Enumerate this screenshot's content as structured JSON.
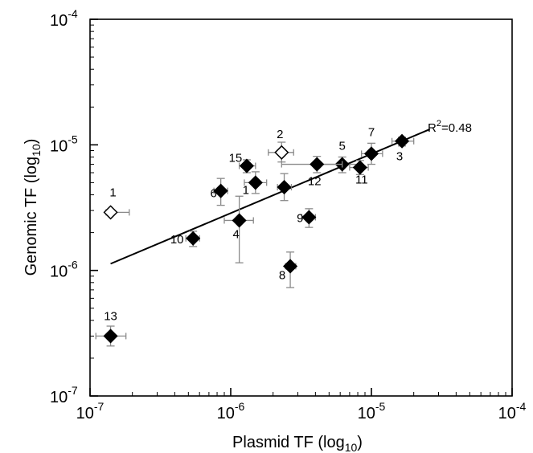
{
  "chart_data": {
    "type": "scatter",
    "xscale": "log",
    "yscale": "log",
    "xlim": [
      1e-07,
      0.0001
    ],
    "ylim": [
      1e-07,
      0.0001
    ],
    "xlabel": "Plasmid TF (log",
    "xlabel_sub": "10",
    "xlabel_end": ")",
    "ylabel": "Genomic TF (log",
    "ylabel_sub": "10",
    "ylabel_end": ")",
    "x_ticks": [
      {
        "value": 1e-07,
        "base": "10",
        "exp": "-7"
      },
      {
        "value": 1e-06,
        "base": "10",
        "exp": "-6"
      },
      {
        "value": 1e-05,
        "base": "10",
        "exp": "-5"
      },
      {
        "value": 0.0001,
        "base": "10",
        "exp": "-4"
      }
    ],
    "y_ticks": [
      {
        "value": 1e-07,
        "base": "10",
        "exp": "-7"
      },
      {
        "value": 1e-06,
        "base": "10",
        "exp": "-6"
      },
      {
        "value": 1e-05,
        "base": "10",
        "exp": "-5"
      },
      {
        "value": 0.0001,
        "base": "10",
        "exp": "-4"
      }
    ],
    "grid": false,
    "points": [
      {
        "label": "1",
        "x": 1.4e-07,
        "y": 2.9e-06,
        "xerr": [
          1.3e-07,
          1.9e-07
        ],
        "yerr": [
          2.8e-06,
          3e-06
        ],
        "filled": false
      },
      {
        "label": "2",
        "x": 2.3e-06,
        "y": 8.7e-06,
        "xerr": [
          1.85e-06,
          2.8e-06
        ],
        "yerr": [
          7.3e-06,
          1.05e-05
        ],
        "filled": false
      },
      {
        "label": "3",
        "x": 1.65e-05,
        "y": 1.07e-05,
        "xerr": [
          1.4e-05,
          2e-05
        ],
        "yerr": [
          9.8e-06,
          1.15e-05
        ],
        "filled": true
      },
      {
        "label": "4",
        "x": 1.15e-06,
        "y": 2.5e-06,
        "xerr": [
          9e-07,
          1.45e-06
        ],
        "yerr": [
          1.15e-06,
          3.9e-06
        ],
        "filled": true
      },
      {
        "label": "5",
        "x": 6.2e-06,
        "y": 7e-06,
        "xerr": [
          4.2e-06,
          8.2e-06
        ],
        "yerr": [
          6e-06,
          8e-06
        ],
        "filled": true
      },
      {
        "label": "6",
        "x": 8.5e-07,
        "y": 4.3e-06,
        "xerr": [
          7.6e-07,
          9.5e-07
        ],
        "yerr": [
          3.3e-06,
          5.4e-06
        ],
        "filled": true
      },
      {
        "label": "7",
        "x": 1e-05,
        "y": 8.5e-06,
        "xerr": [
          8.5e-06,
          1.2e-05
        ],
        "yerr": [
          7e-06,
          1.03e-05
        ],
        "filled": true
      },
      {
        "label": "8",
        "x": 2.65e-06,
        "y": 1.08e-06,
        "xerr": [
          2.45e-06,
          2.9e-06
        ],
        "yerr": [
          7.3e-07,
          1.4e-06
        ],
        "filled": true
      },
      {
        "label": "9",
        "x": 3.6e-06,
        "y": 2.65e-06,
        "xerr": [
          3.2e-06,
          4e-06
        ],
        "yerr": [
          2.2e-06,
          3.1e-06
        ],
        "filled": true
      },
      {
        "label": "10",
        "x": 5.4e-07,
        "y": 1.8e-06,
        "xerr": [
          4.8e-07,
          6e-07
        ],
        "yerr": [
          1.55e-06,
          2.05e-06
        ],
        "filled": true
      },
      {
        "label": "11",
        "x": 8.3e-06,
        "y": 6.6e-06,
        "xerr": [
          7e-06,
          9.5e-06
        ],
        "yerr": [
          5.8e-06,
          7.5e-06
        ],
        "filled": true
      },
      {
        "label": "12",
        "x": 4.1e-06,
        "y": 7e-06,
        "xerr": [
          2.3e-06,
          6.2e-06
        ],
        "yerr": [
          6e-06,
          8.1e-06
        ],
        "filled": true
      },
      {
        "label": "13",
        "x": 1.4e-07,
        "y": 3e-07,
        "xerr": [
          1.1e-07,
          1.8e-07
        ],
        "yerr": [
          2.5e-07,
          3.6e-07
        ],
        "filled": true
      },
      {
        "label": "1",
        "x": 1.5e-06,
        "y": 5e-06,
        "xerr": [
          1.25e-06,
          1.8e-06
        ],
        "yerr": [
          4.1e-06,
          6.1e-06
        ],
        "filled": true
      },
      {
        "label": "15",
        "x": 1.3e-06,
        "y": 6.8e-06,
        "xerr": [
          1.15e-06,
          1.5e-06
        ],
        "yerr": [
          6e-06,
          7.6e-06
        ],
        "filled": true
      },
      {
        "label": "",
        "x": 2.4e-06,
        "y": 4.6e-06,
        "xerr": [
          2.15e-06,
          2.7e-06
        ],
        "yerr": [
          3.6e-06,
          5.9e-06
        ],
        "filled": true
      }
    ],
    "fit_line": {
      "x": [
        1.4e-07,
        2.6e-05
      ],
      "y": [
        1.13e-06,
        1.33e-05
      ]
    },
    "annotation": {
      "text": "R",
      "sup": "2",
      "tail": "=0.48"
    }
  }
}
